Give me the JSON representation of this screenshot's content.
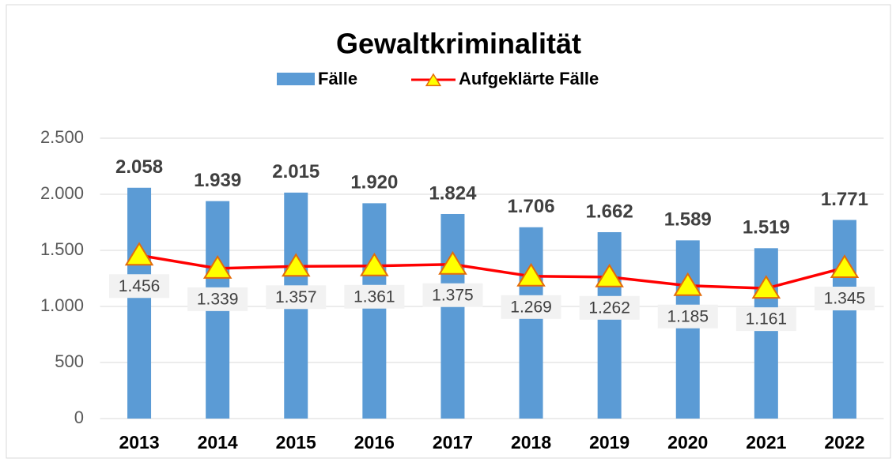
{
  "chart_data": {
    "type": "bar",
    "title": "Gewaltkriminalität",
    "categories": [
      "2013",
      "2014",
      "2015",
      "2016",
      "2017",
      "2018",
      "2019",
      "2020",
      "2021",
      "2022"
    ],
    "series": [
      {
        "name": "Fälle",
        "type": "bar",
        "color": "#5b9bd5",
        "values": [
          2058,
          1939,
          2015,
          1920,
          1824,
          1706,
          1662,
          1589,
          1519,
          1771
        ],
        "value_labels": [
          "2.058",
          "1.939",
          "2.015",
          "1.920",
          "1.824",
          "1.706",
          "1.662",
          "1.589",
          "1.519",
          "1.771"
        ]
      },
      {
        "name": "Aufgeklärte Fälle",
        "type": "line",
        "color": "#ff0000",
        "marker_color": "#ffff00",
        "values": [
          1456,
          1339,
          1357,
          1361,
          1375,
          1269,
          1262,
          1185,
          1161,
          1345
        ],
        "value_labels": [
          "1.456",
          "1.339",
          "1.357",
          "1.361",
          "1.375",
          "1.269",
          "1.262",
          "1.185",
          "1.161",
          "1.345"
        ]
      }
    ],
    "ylim": [
      0,
      2500
    ],
    "yticks": [
      0,
      500,
      {
        "value": 1000,
        "label": "1.000"
      },
      {
        "value": 1500,
        "label": "1.500"
      },
      {
        "value": 2000,
        "label": "2.000"
      },
      {
        "value": 2500,
        "label": "2.500"
      }
    ],
    "grid": true,
    "legend": "top"
  }
}
